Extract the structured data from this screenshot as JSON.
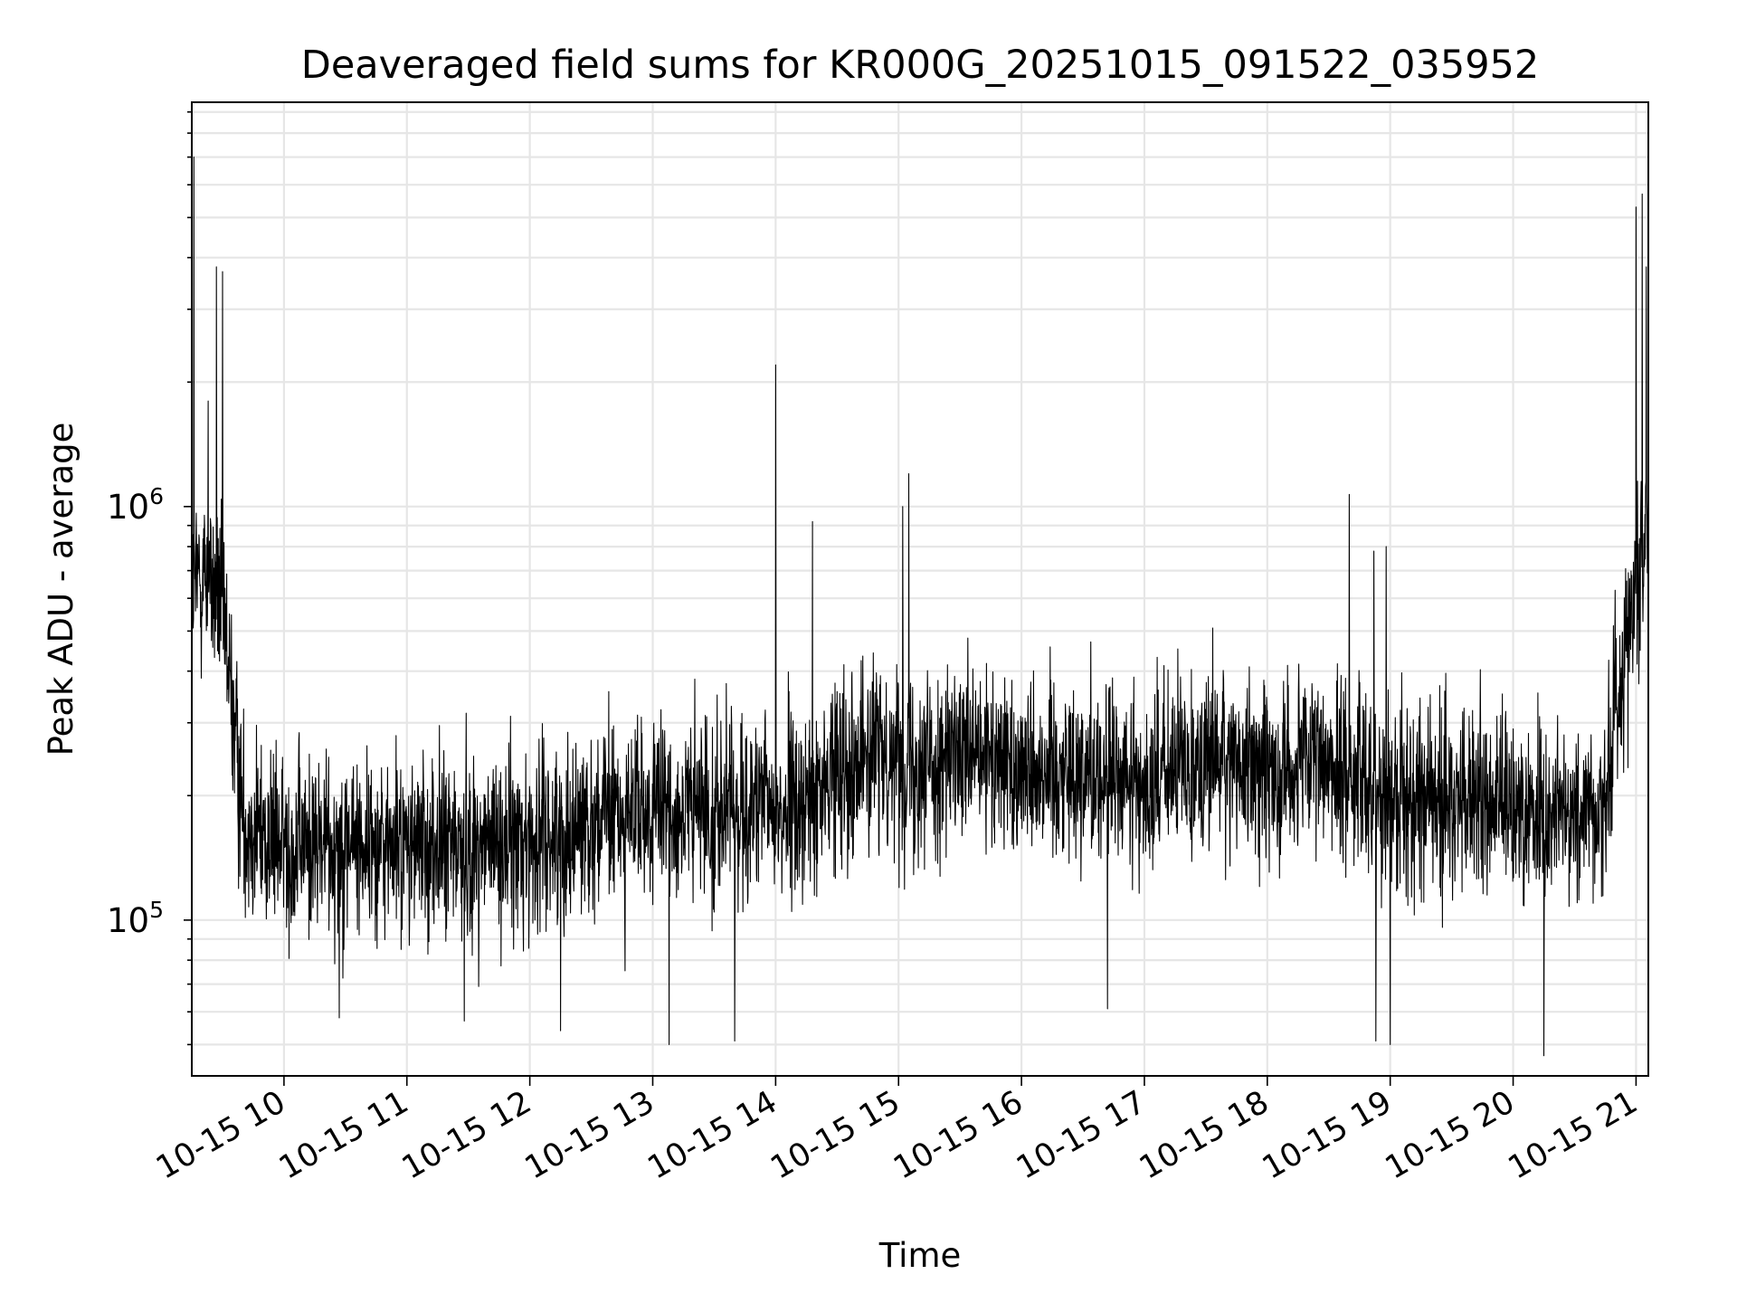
{
  "chart_data": {
    "type": "line",
    "title": "Deaveraged field sums for KR000G_20251015_091522_035952",
    "xlabel": "Time",
    "ylabel": "Peak ADU - average",
    "yscale": "log",
    "xlim": [
      "2025-10-15 09:15",
      "2025-10-15 21:06"
    ],
    "ylim": [
      42000,
      9500000
    ],
    "grid": true,
    "grid_minor": true,
    "legend": "none",
    "line_color": "#000000",
    "grid_color": "#e6e6e6",
    "x_ticks": [
      "10-15 10",
      "10-15 11",
      "10-15 12",
      "10-15 13",
      "10-15 14",
      "10-15 15",
      "10-15 16",
      "10-15 17",
      "10-15 18",
      "10-15 19",
      "10-15 20",
      "10-15 21"
    ],
    "y_ticks": [
      {
        "value": 100000,
        "base": "10",
        "exp": "5"
      },
      {
        "value": 1000000,
        "base": "10",
        "exp": "6"
      }
    ],
    "series": [
      {
        "x": [
          "2025-10-15 09:15",
          "2025-10-15 09:20",
          "2025-10-15 09:25",
          "2025-10-15 09:30",
          "2025-10-15 09:35",
          "2025-10-15 09:40",
          "2025-10-15 09:50",
          "2025-10-15 10:00",
          "2025-10-15 10:30",
          "2025-10-15 11:00",
          "2025-10-15 11:30",
          "2025-10-15 12:00",
          "2025-10-15 12:30",
          "2025-10-15 13:00",
          "2025-10-15 13:30",
          "2025-10-15 14:00",
          "2025-10-15 14:20",
          "2025-10-15 14:30",
          "2025-10-15 15:00",
          "2025-10-15 15:30",
          "2025-10-15 16:00",
          "2025-10-15 16:30",
          "2025-10-15 17:00",
          "2025-10-15 17:30",
          "2025-10-15 18:00",
          "2025-10-15 18:30",
          "2025-10-15 19:00",
          "2025-10-15 19:30",
          "2025-10-15 20:00",
          "2025-10-15 20:30",
          "2025-10-15 20:45",
          "2025-10-15 20:50",
          "2025-10-15 21:00",
          "2025-10-15 21:06"
        ],
        "values": [
          600000,
          700000,
          650000,
          550000,
          320000,
          180000,
          160000,
          150000,
          155000,
          150000,
          150000,
          155000,
          175000,
          180000,
          185000,
          185000,
          190000,
          245000,
          250000,
          240000,
          240000,
          230000,
          210000,
          250000,
          230000,
          240000,
          200000,
          195000,
          185000,
          180000,
          190000,
          330000,
          650000,
          900000
        ],
        "spikes": [
          {
            "x": "2025-10-15 09:16",
            "value": 7000000
          },
          {
            "x": "2025-10-15 09:23",
            "value": 1800000
          },
          {
            "x": "2025-10-15 09:27",
            "value": 3800000
          },
          {
            "x": "2025-10-15 09:30",
            "value": 3700000
          },
          {
            "x": "2025-10-15 14:00",
            "value": 2200000
          },
          {
            "x": "2025-10-15 14:18",
            "value": 920000
          },
          {
            "x": "2025-10-15 15:02",
            "value": 1000000
          },
          {
            "x": "2025-10-15 15:05",
            "value": 1200000
          },
          {
            "x": "2025-10-15 18:40",
            "value": 1070000
          },
          {
            "x": "2025-10-15 18:52",
            "value": 780000
          },
          {
            "x": "2025-10-15 18:58",
            "value": 800000
          },
          {
            "x": "2025-10-15 21:00",
            "value": 5300000
          },
          {
            "x": "2025-10-15 21:03",
            "value": 5700000
          },
          {
            "x": "2025-10-15 21:05",
            "value": 3800000
          }
        ],
        "dips": [
          {
            "x": "2025-10-15 10:27",
            "value": 58000
          },
          {
            "x": "2025-10-15 11:28",
            "value": 57000
          },
          {
            "x": "2025-10-15 12:15",
            "value": 54000
          },
          {
            "x": "2025-10-15 13:08",
            "value": 50000
          },
          {
            "x": "2025-10-15 13:40",
            "value": 51000
          },
          {
            "x": "2025-10-15 16:42",
            "value": 61000
          },
          {
            "x": "2025-10-15 18:53",
            "value": 51000
          },
          {
            "x": "2025-10-15 19:00",
            "value": 50000
          },
          {
            "x": "2025-10-15 20:15",
            "value": 47000
          }
        ]
      }
    ]
  }
}
